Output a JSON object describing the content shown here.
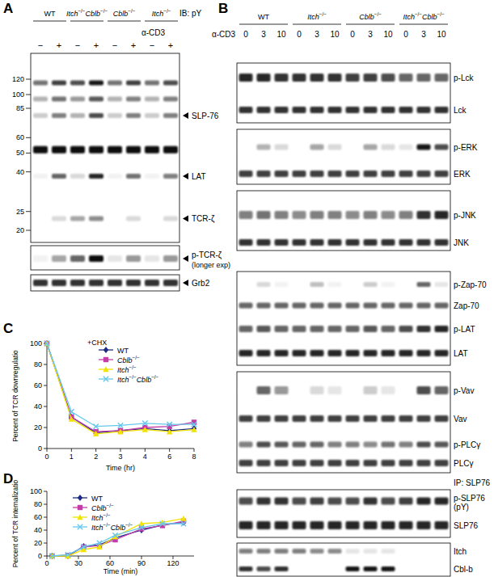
{
  "panel_labels": [
    "A",
    "B",
    "C",
    "D"
  ],
  "blot_a": {
    "groups": [
      "WT",
      "Itch−/−Cblb−/−",
      "Cblb−/−",
      "Itch−/−"
    ],
    "header": "IB: pY",
    "treatment": "α-CD3",
    "lanes": [
      "−",
      "+",
      "−",
      "+",
      "−",
      "+",
      "−",
      "+"
    ],
    "mw_markers": [
      120,
      100,
      85,
      60,
      50,
      40,
      25,
      20
    ],
    "bands": [
      {
        "mw": 115,
        "intensity": [
          0.55,
          0.75,
          0.7,
          0.9,
          0.55,
          0.75,
          0.55,
          0.7
        ]
      },
      {
        "mw": 95,
        "intensity": [
          0.3,
          0.55,
          0.4,
          0.65,
          0.3,
          0.5,
          0.3,
          0.5
        ]
      },
      {
        "mw": 78,
        "intensity": [
          0.2,
          0.5,
          0.3,
          0.7,
          0.2,
          0.5,
          0.2,
          0.5
        ]
      },
      {
        "mw": 52,
        "intensity": [
          0.95,
          0.95,
          0.95,
          0.95,
          0.95,
          0.95,
          0.95,
          0.95
        ]
      },
      {
        "mw": 38,
        "intensity": [
          0.05,
          0.6,
          0.15,
          0.85,
          0.05,
          0.55,
          0.05,
          0.5
        ]
      },
      {
        "mw": 23,
        "intensity": [
          0,
          0.15,
          0.35,
          0.45,
          0,
          0.15,
          0,
          0.15
        ]
      }
    ],
    "band_labels": [
      {
        "label": "SLP-76",
        "mw": 78
      },
      {
        "label": "LAT",
        "mw": 38
      },
      {
        "label": "TCR-ζ",
        "mw": 23
      }
    ],
    "strips": [
      {
        "label": "p-TCR-ζ",
        "sublabel": "(longer exp)",
        "intensity": [
          0.05,
          0.35,
          0.6,
          0.95,
          0.1,
          0.4,
          0.1,
          0.4
        ]
      },
      {
        "label": "Grb2",
        "intensity": [
          0.8,
          0.8,
          0.8,
          0.8,
          0.8,
          0.8,
          0.8,
          0.8
        ]
      }
    ]
  },
  "blot_b": {
    "groups": [
      "WT",
      "Itch−/−",
      "Cblb−/−",
      "Itch−/−Cblb−/−"
    ],
    "treatment": "α-CD3",
    "times": [
      0,
      3,
      10,
      0,
      3,
      10,
      0,
      3,
      10,
      0,
      3,
      10
    ],
    "rows": [
      {
        "label": "p-Lck",
        "intensity": [
          0.85,
          0.85,
          0.8,
          0.8,
          0.8,
          0.8,
          0.75,
          0.75,
          0.7,
          0.6,
          0.6,
          0.6
        ]
      },
      {
        "label": "Lck",
        "intensity": [
          0.8,
          0.8,
          0.8,
          0.8,
          0.8,
          0.8,
          0.8,
          0.8,
          0.8,
          0.8,
          0.8,
          0.8
        ]
      },
      {
        "label": "p-ERK",
        "intensity": [
          0,
          0.3,
          0.15,
          0,
          0.35,
          0.15,
          0,
          0.35,
          0.15,
          0.1,
          0.9,
          0.7
        ]
      },
      {
        "label": "ERK",
        "intensity": [
          0.75,
          0.75,
          0.75,
          0.75,
          0.75,
          0.75,
          0.75,
          0.75,
          0.75,
          0.75,
          0.75,
          0.75
        ]
      },
      {
        "label": "p-JNK",
        "intensity": [
          0.5,
          0.55,
          0.5,
          0.45,
          0.5,
          0.5,
          0.45,
          0.5,
          0.45,
          0.5,
          0.8,
          0.85
        ]
      },
      {
        "label": "JNK",
        "intensity": [
          0.8,
          0.8,
          0.8,
          0.8,
          0.8,
          0.8,
          0.8,
          0.8,
          0.8,
          0.8,
          0.8,
          0.8
        ]
      },
      {
        "label": "p-Zap-70",
        "intensity": [
          0,
          0.15,
          0.05,
          0,
          0.25,
          0.05,
          0,
          0.2,
          0.05,
          0,
          0.6,
          0.1
        ]
      },
      {
        "label": "Zap-70",
        "intensity": [
          0.6,
          0.6,
          0.6,
          0.6,
          0.6,
          0.6,
          0.6,
          0.6,
          0.6,
          0.6,
          0.6,
          0.6
        ]
      },
      {
        "label": "p-LAT",
        "intensity": [
          0.6,
          0.65,
          0.6,
          0.6,
          0.6,
          0.6,
          0.6,
          0.65,
          0.6,
          0.7,
          0.8,
          0.85
        ]
      },
      {
        "label": "LAT",
        "intensity": [
          0.85,
          0.85,
          0.85,
          0.85,
          0.85,
          0.85,
          0.85,
          0.85,
          0.85,
          0.85,
          0.85,
          0.85
        ]
      },
      {
        "label": "p-Vav",
        "intensity": [
          0,
          0.6,
          0.4,
          0,
          0.15,
          0.1,
          0,
          0.2,
          0.1,
          0,
          0.7,
          0.6
        ]
      },
      {
        "label": "Vav",
        "intensity": [
          0.75,
          0.75,
          0.75,
          0.75,
          0.75,
          0.75,
          0.75,
          0.75,
          0.75,
          0.75,
          0.75,
          0.75
        ]
      },
      {
        "label": "p-PLCγ",
        "intensity": [
          0.5,
          0.7,
          0.65,
          0.6,
          0.6,
          0.5,
          0.5,
          0.45,
          0.55,
          0.5,
          0.7,
          0.65
        ]
      },
      {
        "label": "PLCγ",
        "intensity": [
          0.75,
          0.75,
          0.75,
          0.75,
          0.75,
          0.75,
          0.75,
          0.75,
          0.75,
          0.75,
          0.75,
          0.75
        ]
      },
      {
        "label": "p-SLP76",
        "sublabel": "(pY)",
        "ip": "IP: SLP76",
        "intensity": [
          0.7,
          0.8,
          0.8,
          0.7,
          0.75,
          0.7,
          0.7,
          0.8,
          0.7,
          0.75,
          0.85,
          0.85
        ]
      },
      {
        "label": "SLP76",
        "intensity": [
          0.85,
          0.85,
          0.85,
          0.85,
          0.85,
          0.85,
          0.85,
          0.85,
          0.85,
          0.85,
          0.85,
          0.85
        ]
      },
      {
        "label": "Itch",
        "intensity": [
          0.5,
          0.5,
          0.5,
          0.5,
          0.45,
          0.45,
          0.1,
          0.1,
          0.1,
          0,
          0,
          0
        ]
      },
      {
        "label": "Cbl-b",
        "intensity": [
          0.8,
          0.7,
          0.8,
          0,
          0,
          0,
          0.9,
          0.9,
          0.9,
          0,
          0,
          0
        ]
      }
    ]
  },
  "chart_data": [
    {
      "type": "line",
      "annotation": "+CHX",
      "y_label": "Percent of TCR downregulatio",
      "x_label": "Time (hr)",
      "categories": [
        "0",
        "1",
        "2",
        "3",
        "4",
        "6",
        "8"
      ],
      "ylim": [
        0,
        100
      ],
      "yticks": [
        0,
        20,
        40,
        60,
        80,
        100
      ],
      "legend": "upper right",
      "series": [
        {
          "name": "WT",
          "color": "#1c2a84",
          "marker": "diamond",
          "values": [
            100,
            30,
            15,
            17,
            19,
            17,
            19
          ]
        },
        {
          "name": "Cblb−/−",
          "color": "#c43ca8",
          "marker": "square",
          "values": [
            100,
            30,
            16,
            17,
            20,
            21,
            25
          ]
        },
        {
          "name": "Itch−/−",
          "color": "#f2e200",
          "marker": "triangle",
          "values": [
            100,
            28,
            14,
            16,
            18,
            16,
            18
          ]
        },
        {
          "name": "Itch−/−Cblb−/−",
          "color": "#66c8ec",
          "marker": "x",
          "values": [
            100,
            35,
            21,
            22,
            24,
            23,
            23
          ]
        }
      ]
    },
    {
      "type": "line",
      "y_label": "Percent of TCR internalizatio",
      "x_label": "Time (min)",
      "x": [
        5,
        20,
        35,
        50,
        65,
        90,
        110,
        130
      ],
      "xlim": [
        0,
        140
      ],
      "xticks": [
        0,
        30,
        60,
        90,
        120
      ],
      "ylim": [
        0,
        100
      ],
      "yticks": [
        0,
        20,
        40,
        60,
        80,
        100
      ],
      "legend": "upper left",
      "series": [
        {
          "name": "WT",
          "color": "#1c2a84",
          "marker": "diamond",
          "values": [
            0,
            0,
            15,
            17,
            28,
            40,
            48,
            52
          ]
        },
        {
          "name": "Cblb−/−",
          "color": "#c43ca8",
          "marker": "square",
          "values": [
            0,
            1,
            14,
            16,
            25,
            42,
            47,
            54
          ]
        },
        {
          "name": "Itch−/−",
          "color": "#f2e200",
          "marker": "triangle",
          "values": [
            0,
            0,
            10,
            14,
            30,
            50,
            52,
            58
          ]
        },
        {
          "name": "Itch−/−Cblb−/−",
          "color": "#66c8ec",
          "marker": "x",
          "values": [
            0,
            2,
            14,
            20,
            32,
            44,
            50,
            50
          ]
        }
      ]
    }
  ]
}
